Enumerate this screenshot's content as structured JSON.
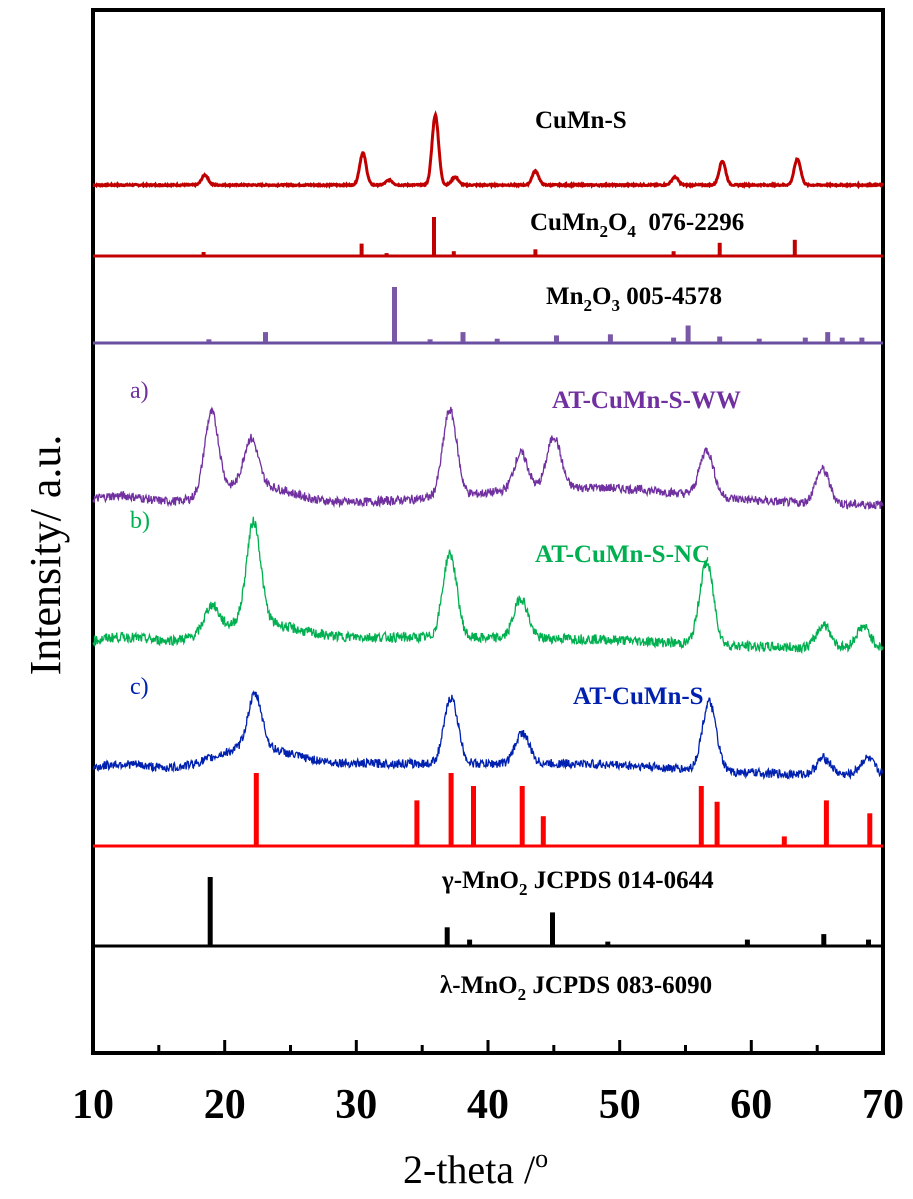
{
  "chart_data": {
    "type": "line",
    "xlabel": "2-theta /",
    "xlabel_sup": "o",
    "ylabel": "Intensity/ a.u.",
    "xlim": [
      10,
      70
    ],
    "xticks": [
      "10",
      "20",
      "30",
      "40",
      "50",
      "60",
      "70"
    ],
    "grid": false,
    "series": [
      {
        "name": "CuMn-S",
        "color": "#c00000",
        "peaks": [
          [
            18.5,
            10
          ],
          [
            30.5,
            32
          ],
          [
            32.5,
            5
          ],
          [
            36.0,
            70
          ],
          [
            37.5,
            8
          ],
          [
            43.6,
            14
          ],
          [
            54.2,
            8
          ],
          [
            57.8,
            24
          ],
          [
            63.5,
            26
          ]
        ]
      },
      {
        "name": "AT-CuMn-S-WW",
        "prefix": "a)",
        "color": "#7030a0",
        "peaks": [
          [
            19.0,
            70
          ],
          [
            22.0,
            40
          ],
          [
            37.1,
            75
          ],
          [
            42.5,
            32
          ],
          [
            45.0,
            45
          ],
          [
            56.6,
            40
          ],
          [
            65.4,
            30
          ]
        ]
      },
      {
        "name": "AT-CuMn-S-NC",
        "prefix": "b)",
        "color": "#00b050",
        "peaks": [
          [
            19.0,
            25
          ],
          [
            22.2,
            95
          ],
          [
            37.1,
            80
          ],
          [
            42.5,
            38
          ],
          [
            56.6,
            78
          ],
          [
            65.5,
            22
          ],
          [
            68.5,
            20
          ]
        ]
      },
      {
        "name": "AT-CuMn-S",
        "prefix": "c)",
        "color": "#0020b0",
        "peaks": [
          [
            22.3,
            48
          ],
          [
            37.2,
            60
          ],
          [
            42.6,
            28
          ],
          [
            56.8,
            62
          ],
          [
            65.5,
            15
          ],
          [
            68.8,
            15
          ]
        ]
      }
    ],
    "references": [
      {
        "label": "CuMn",
        "sub": "2",
        "label2": "O",
        "sub2": "4",
        "label3": "  076-2296",
        "color": "#c00000",
        "lines": [
          [
            18.4,
            8
          ],
          [
            30.4,
            30
          ],
          [
            32.3,
            5
          ],
          [
            35.9,
            100
          ],
          [
            37.4,
            10
          ],
          [
            43.6,
            15
          ],
          [
            54.1,
            10
          ],
          [
            57.6,
            32
          ],
          [
            63.3,
            40
          ]
        ]
      },
      {
        "label": "Mn",
        "sub": "2",
        "label2": "O",
        "sub2": "3",
        "label3": " 005-4578",
        "color": "#7a58a8",
        "lines": [
          [
            18.8,
            5
          ],
          [
            23.1,
            18
          ],
          [
            32.9,
            100
          ],
          [
            35.6,
            5
          ],
          [
            38.1,
            18
          ],
          [
            40.7,
            6
          ],
          [
            45.2,
            12
          ],
          [
            49.3,
            14
          ],
          [
            54.1,
            8
          ],
          [
            55.2,
            30
          ],
          [
            57.6,
            10
          ],
          [
            60.6,
            6
          ],
          [
            64.1,
            8
          ],
          [
            65.8,
            18
          ],
          [
            66.9,
            8
          ],
          [
            68.4,
            8
          ]
        ]
      },
      {
        "label": "γ-MnO",
        "sub": "2",
        "label3": " JCPDS 014-0644",
        "color": "#ff0000",
        "lines": [
          [
            22.4,
            100
          ],
          [
            34.6,
            62
          ],
          [
            37.2,
            100
          ],
          [
            38.9,
            82
          ],
          [
            42.6,
            82
          ],
          [
            44.2,
            40
          ],
          [
            56.2,
            82
          ],
          [
            57.4,
            60
          ],
          [
            62.5,
            12
          ],
          [
            65.7,
            62
          ],
          [
            69.0,
            44
          ]
        ]
      },
      {
        "label": "λ-MnO",
        "sub": "2",
        "label3": " JCPDS 083-6090",
        "color": "#000000",
        "lines": [
          [
            18.9,
            100
          ],
          [
            36.9,
            26
          ],
          [
            38.6,
            8
          ],
          [
            44.9,
            48
          ],
          [
            49.1,
            5
          ],
          [
            59.7,
            8
          ],
          [
            65.5,
            16
          ],
          [
            68.9,
            8
          ]
        ]
      }
    ]
  }
}
